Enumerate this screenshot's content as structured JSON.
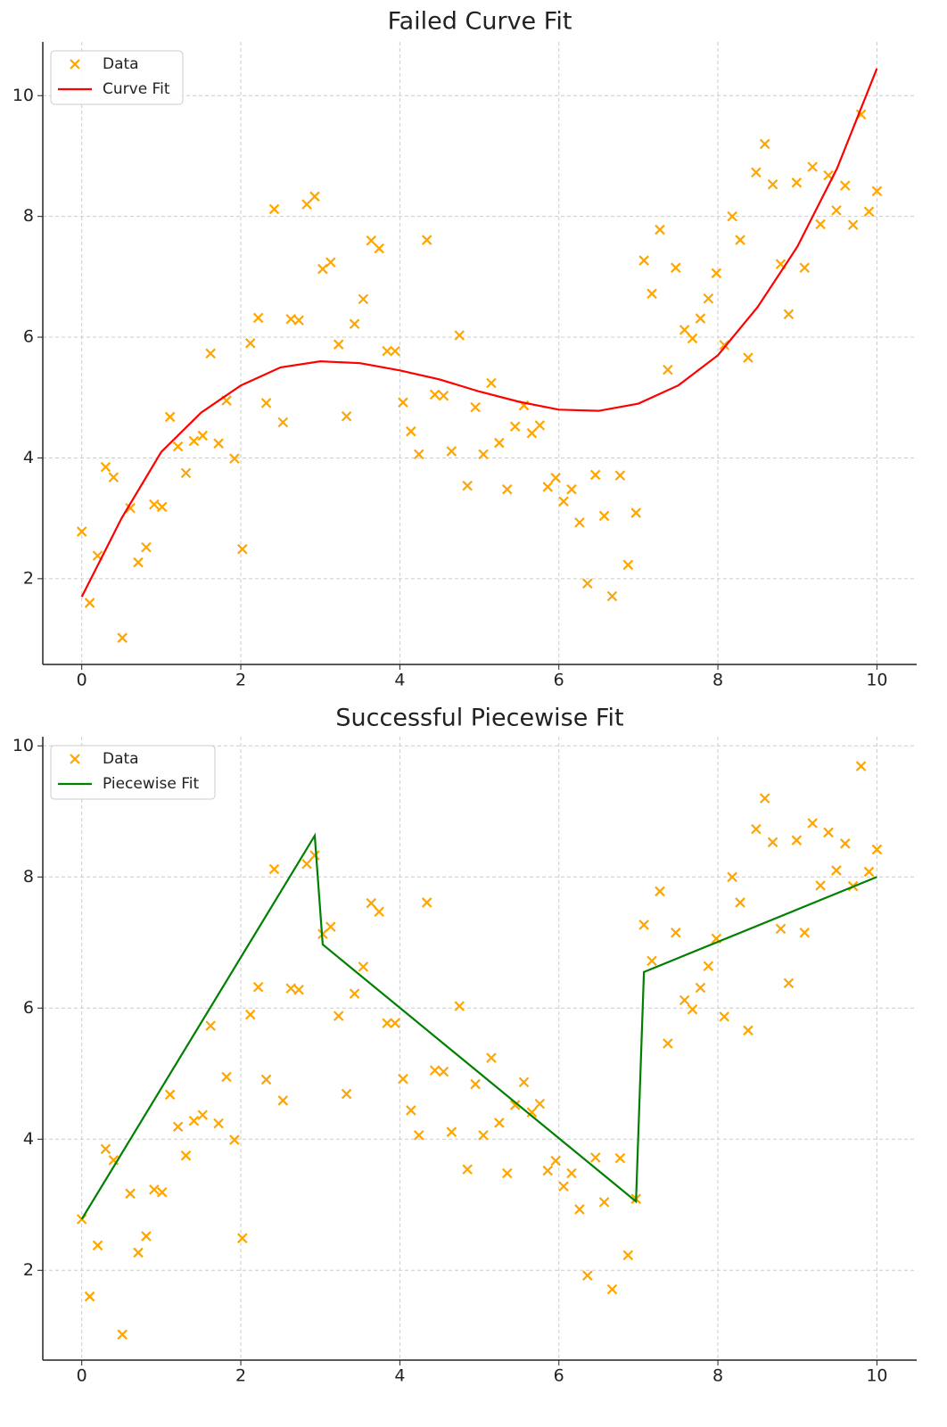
{
  "chart_data": [
    {
      "type": "scatter",
      "title": "Failed Curve Fit",
      "xlim": [
        -0.49,
        10.5
      ],
      "ylim": [
        0.58,
        10.89
      ],
      "xticks": [
        0,
        2,
        4,
        6,
        8,
        10
      ],
      "yticks": [
        2,
        4,
        6,
        8,
        10
      ],
      "grid": true,
      "legend": "upper left",
      "series": [
        {
          "name": "Data",
          "color": "#ffa500",
          "marker": "x",
          "x": [
            0,
            0.1,
            0.2,
            0.3,
            0.4,
            0.51,
            0.61,
            0.71,
            0.81,
            0.91,
            1.01,
            1.11,
            1.21,
            1.31,
            1.41,
            1.52,
            1.62,
            1.72,
            1.82,
            1.92,
            2.02,
            2.12,
            2.22,
            2.32,
            2.42,
            2.53,
            2.63,
            2.73,
            2.83,
            2.93,
            3.03,
            3.13,
            3.23,
            3.33,
            3.43,
            3.54,
            3.64,
            3.74,
            3.84,
            3.94,
            4.04,
            4.14,
            4.24,
            4.34,
            4.44,
            4.55,
            4.65,
            4.75,
            4.85,
            4.95,
            5.05,
            5.15,
            5.25,
            5.35,
            5.45,
            5.56,
            5.66,
            5.76,
            5.86,
            5.96,
            6.06,
            6.16,
            6.26,
            6.36,
            6.46,
            6.57,
            6.67,
            6.77,
            6.87,
            6.97,
            7.07,
            7.17,
            7.27,
            7.37,
            7.47,
            7.58,
            7.68,
            7.78,
            7.88,
            7.98,
            8.08,
            8.18,
            8.28,
            8.38,
            8.48,
            8.59,
            8.69,
            8.79,
            8.89,
            8.99,
            9.09,
            9.19,
            9.29,
            9.39,
            9.49,
            9.6,
            9.7,
            9.8,
            9.9,
            10
          ],
          "values": [
            2.78,
            1.6,
            2.38,
            3.85,
            3.68,
            1.02,
            3.17,
            2.27,
            2.52,
            3.23,
            3.19,
            4.68,
            4.19,
            3.75,
            4.28,
            4.37,
            5.73,
            4.24,
            4.95,
            3.99,
            2.49,
            5.9,
            6.32,
            4.91,
            8.12,
            4.59,
            6.3,
            6.28,
            8.2,
            8.33,
            7.13,
            7.24,
            5.88,
            4.69,
            6.22,
            6.63,
            7.6,
            7.47,
            5.77,
            5.77,
            4.92,
            4.44,
            4.06,
            7.61,
            5.05,
            5.03,
            4.11,
            6.03,
            3.54,
            4.84,
            4.06,
            5.24,
            4.25,
            3.48,
            4.52,
            4.87,
            4.41,
            4.54,
            3.52,
            3.67,
            3.28,
            3.48,
            2.93,
            1.92,
            3.72,
            3.04,
            1.71,
            3.71,
            2.23,
            3.09,
            7.27,
            6.72,
            7.78,
            5.46,
            7.15,
            6.12,
            5.98,
            6.31,
            6.64,
            7.06,
            5.87,
            8.0,
            7.61,
            5.66,
            8.73,
            9.2,
            8.53,
            7.21,
            6.38,
            8.56,
            7.15,
            8.82,
            7.87,
            8.68,
            8.1,
            8.51,
            7.86,
            9.69,
            8.08,
            8.42
          ]
        },
        {
          "name": "Curve Fit",
          "color": "#ff0000",
          "type": "line",
          "x": [
            0,
            0.5,
            1,
            1.5,
            2,
            2.5,
            3,
            3.5,
            4,
            4.5,
            5,
            5.5,
            6,
            6.5,
            7,
            7.5,
            8,
            8.5,
            9,
            9.5,
            10
          ],
          "values": [
            1.7,
            3.0,
            4.1,
            4.75,
            5.2,
            5.5,
            5.6,
            5.57,
            5.45,
            5.3,
            5.1,
            4.93,
            4.8,
            4.78,
            4.9,
            5.2,
            5.7,
            6.5,
            7.5,
            8.8,
            10.45
          ]
        }
      ]
    },
    {
      "type": "scatter",
      "title": "Successful Piecewise Fit",
      "xlim": [
        -0.49,
        10.5
      ],
      "ylim": [
        0.63,
        10.14
      ],
      "xticks": [
        0,
        2,
        4,
        6,
        8,
        10
      ],
      "yticks": [
        2,
        4,
        6,
        8,
        10
      ],
      "grid": true,
      "legend": "upper left",
      "series": [
        {
          "name": "Data",
          "color": "#ffa500",
          "marker": "x",
          "x": [
            0,
            0.1,
            0.2,
            0.3,
            0.4,
            0.51,
            0.61,
            0.71,
            0.81,
            0.91,
            1.01,
            1.11,
            1.21,
            1.31,
            1.41,
            1.52,
            1.62,
            1.72,
            1.82,
            1.92,
            2.02,
            2.12,
            2.22,
            2.32,
            2.42,
            2.53,
            2.63,
            2.73,
            2.83,
            2.93,
            3.03,
            3.13,
            3.23,
            3.33,
            3.43,
            3.54,
            3.64,
            3.74,
            3.84,
            3.94,
            4.04,
            4.14,
            4.24,
            4.34,
            4.44,
            4.55,
            4.65,
            4.75,
            4.85,
            4.95,
            5.05,
            5.15,
            5.25,
            5.35,
            5.45,
            5.56,
            5.66,
            5.76,
            5.86,
            5.96,
            6.06,
            6.16,
            6.26,
            6.36,
            6.46,
            6.57,
            6.67,
            6.77,
            6.87,
            6.97,
            7.07,
            7.17,
            7.27,
            7.37,
            7.47,
            7.58,
            7.68,
            7.78,
            7.88,
            7.98,
            8.08,
            8.18,
            8.28,
            8.38,
            8.48,
            8.59,
            8.69,
            8.79,
            8.89,
            8.99,
            9.09,
            9.19,
            9.29,
            9.39,
            9.49,
            9.6,
            9.7,
            9.8,
            9.9,
            10
          ],
          "values": [
            2.78,
            1.6,
            2.38,
            3.85,
            3.68,
            1.02,
            3.17,
            2.27,
            2.52,
            3.23,
            3.19,
            4.68,
            4.19,
            3.75,
            4.28,
            4.37,
            5.73,
            4.24,
            4.95,
            3.99,
            2.49,
            5.9,
            6.32,
            4.91,
            8.12,
            4.59,
            6.3,
            6.28,
            8.2,
            8.33,
            7.13,
            7.24,
            5.88,
            4.69,
            6.22,
            6.63,
            7.6,
            7.47,
            5.77,
            5.77,
            4.92,
            4.44,
            4.06,
            7.61,
            5.05,
            5.03,
            4.11,
            6.03,
            3.54,
            4.84,
            4.06,
            5.24,
            4.25,
            3.48,
            4.52,
            4.87,
            4.41,
            4.54,
            3.52,
            3.67,
            3.28,
            3.48,
            2.93,
            1.92,
            3.72,
            3.04,
            1.71,
            3.71,
            2.23,
            3.09,
            7.27,
            6.72,
            7.78,
            5.46,
            7.15,
            6.12,
            5.98,
            6.31,
            6.64,
            7.06,
            5.87,
            8.0,
            7.61,
            5.66,
            8.73,
            9.2,
            8.53,
            7.21,
            6.38,
            8.56,
            7.15,
            8.82,
            7.87,
            8.68,
            8.1,
            8.51,
            7.86,
            9.69,
            8.08,
            8.42
          ]
        },
        {
          "name": "Piecewise Fit",
          "color": "#008000",
          "type": "line",
          "x": [
            0,
            2.93,
            3.03,
            6.97,
            7.07,
            10
          ],
          "values": [
            2.78,
            8.63,
            6.97,
            3.05,
            6.55,
            8.0
          ]
        }
      ]
    }
  ]
}
